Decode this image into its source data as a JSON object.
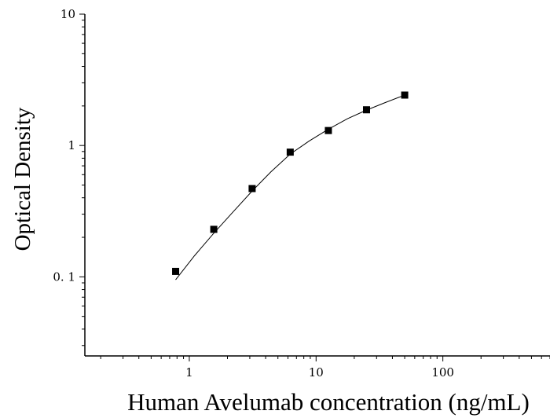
{
  "chart_data": {
    "type": "scatter",
    "xlabel": "Human Avelumab concentration (ng/mL)",
    "ylabel": "Optical Density",
    "x_scale": "log",
    "y_scale": "log",
    "xlim": [
      0.15,
      700
    ],
    "ylim": [
      0.025,
      10
    ],
    "x_ticks": [
      {
        "value": 1,
        "label": "1"
      },
      {
        "value": 10,
        "label": "10"
      },
      {
        "value": 100,
        "label": "100"
      }
    ],
    "y_ticks": [
      {
        "value": 0.1,
        "label": "0. 1"
      },
      {
        "value": 1,
        "label": "1"
      },
      {
        "value": 10,
        "label": "10"
      }
    ],
    "series": [
      {
        "marker": "square",
        "color": "#000000",
        "points": [
          {
            "x": 0.78,
            "y": 0.11
          },
          {
            "x": 1.56,
            "y": 0.23
          },
          {
            "x": 3.13,
            "y": 0.47
          },
          {
            "x": 6.25,
            "y": 0.89
          },
          {
            "x": 12.5,
            "y": 1.3
          },
          {
            "x": 25,
            "y": 1.87
          },
          {
            "x": 50,
            "y": 2.42
          }
        ]
      }
    ],
    "fit_curve": {
      "color": "#000000",
      "x_range": [
        0.78,
        50
      ],
      "points": [
        {
          "x": 0.78,
          "y": 0.095
        },
        {
          "x": 1.1,
          "y": 0.145
        },
        {
          "x": 1.56,
          "y": 0.215
        },
        {
          "x": 2.2,
          "y": 0.31
        },
        {
          "x": 3.13,
          "y": 0.45
        },
        {
          "x": 4.4,
          "y": 0.63
        },
        {
          "x": 6.25,
          "y": 0.86
        },
        {
          "x": 8.8,
          "y": 1.08
        },
        {
          "x": 12.5,
          "y": 1.33
        },
        {
          "x": 17.7,
          "y": 1.6
        },
        {
          "x": 25,
          "y": 1.86
        },
        {
          "x": 35,
          "y": 2.12
        },
        {
          "x": 50,
          "y": 2.42
        }
      ]
    },
    "grid": false,
    "legend": "none"
  }
}
